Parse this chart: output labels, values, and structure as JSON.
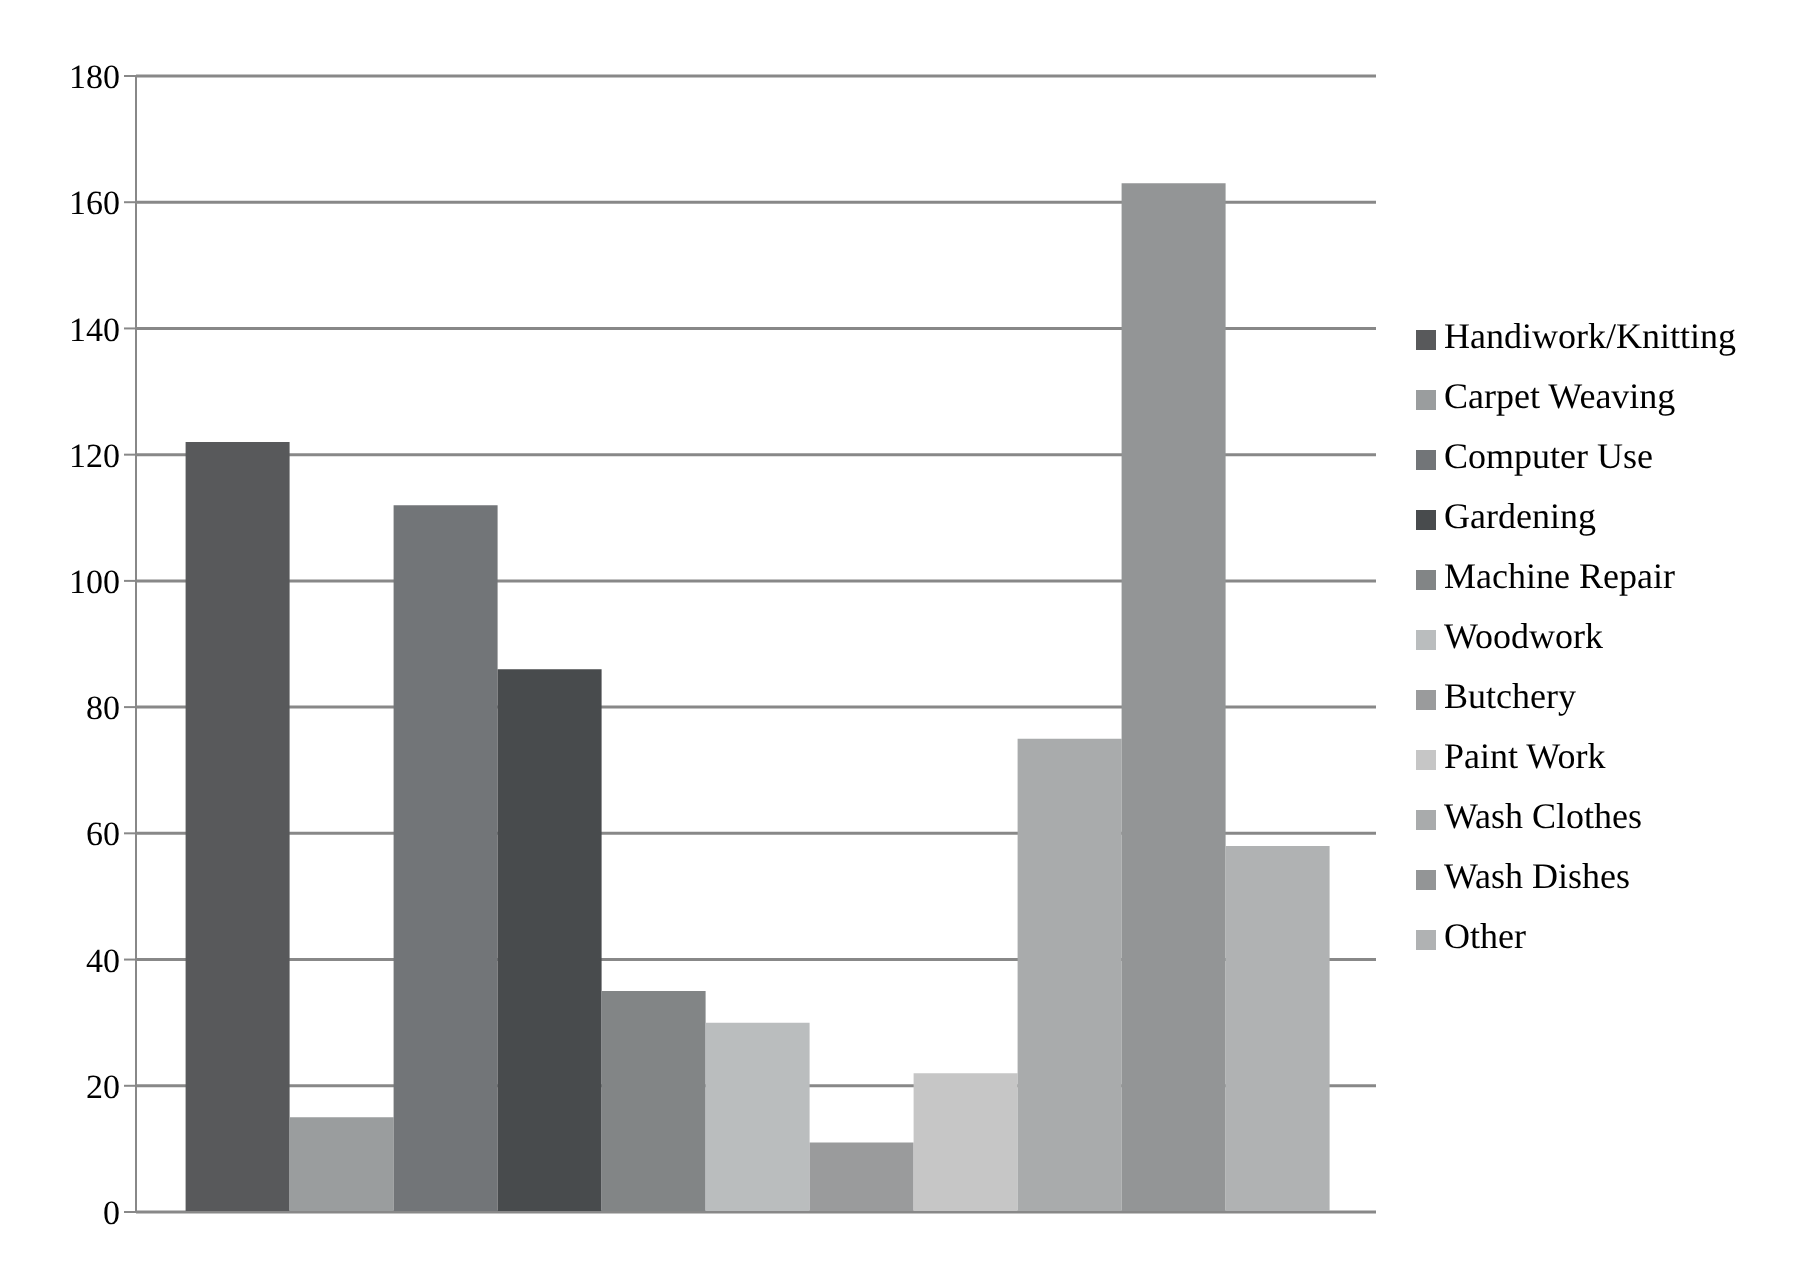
{
  "chart_data": {
    "type": "bar",
    "categories": [
      null
    ],
    "series": [
      {
        "name": "Handiwork/Knitting",
        "color": "#58595b",
        "values": [
          122
        ]
      },
      {
        "name": "Carpet Weaving",
        "color": "#9a9d9e",
        "values": [
          15
        ]
      },
      {
        "name": "Computer Use",
        "color": "#727578",
        "values": [
          112
        ]
      },
      {
        "name": "Gardening",
        "color": "#484b4d",
        "values": [
          86
        ]
      },
      {
        "name": "Machine Repair",
        "color": "#828586",
        "values": [
          35
        ]
      },
      {
        "name": "Woodwork",
        "color": "#babdbe",
        "values": [
          30
        ]
      },
      {
        "name": "Butchery",
        "color": "#9a9b9c",
        "values": [
          11
        ]
      },
      {
        "name": "Paint Work",
        "color": "#c6c6c6",
        "values": [
          22
        ]
      },
      {
        "name": "Wash Clothes",
        "color": "#a9abac",
        "values": [
          75
        ]
      },
      {
        "name": "Wash Dishes",
        "color": "#939596",
        "values": [
          163
        ]
      },
      {
        "name": "Other",
        "color": "#b0b2b3",
        "values": [
          58
        ]
      }
    ],
    "ylim": [
      0,
      180
    ],
    "yticks": [
      0,
      20,
      40,
      60,
      80,
      100,
      120,
      140,
      160,
      180
    ],
    "grid": "y",
    "legend": "right"
  }
}
